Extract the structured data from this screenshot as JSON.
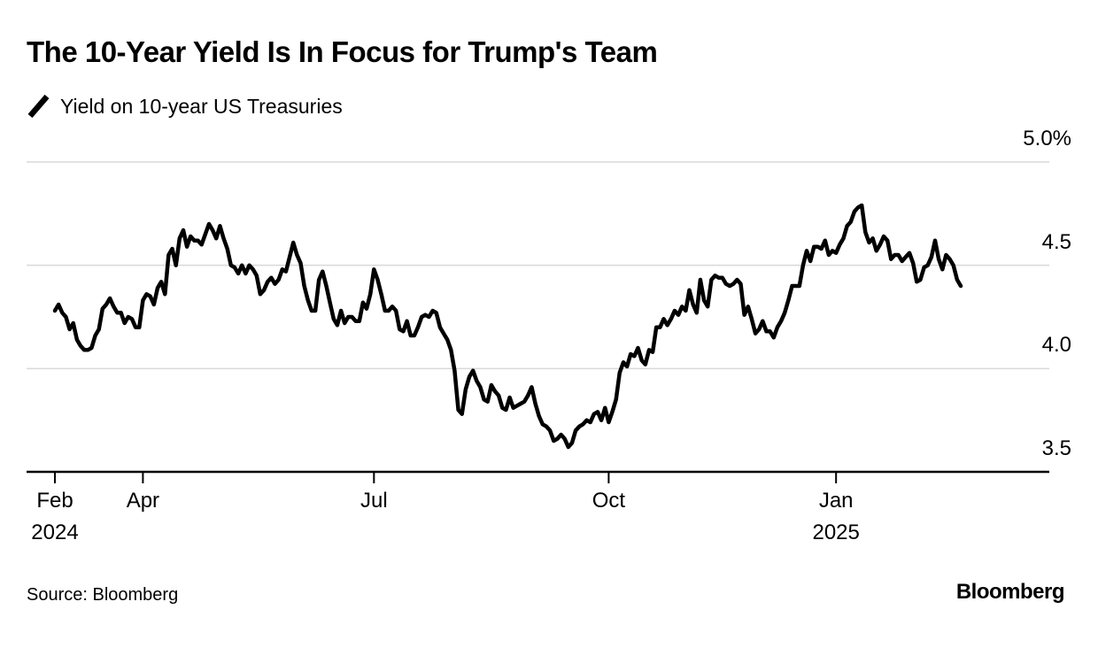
{
  "title": "The 10-Year Yield Is In Focus for Trump's Team",
  "legend": {
    "label": "Yield on 10-year US Treasuries"
  },
  "footer": {
    "source": "Source: Bloomberg",
    "brand": "Bloomberg"
  },
  "colors": {
    "line": "#000000",
    "grid": "#d9d9d9",
    "axis": "#000000",
    "text": "#000000",
    "background": "#ffffff"
  },
  "chart_data": {
    "type": "line",
    "title": "The 10-Year Yield Is In Focus for Trump's Team",
    "series_name": "Yield on 10-year US Treasuries",
    "unit": "%",
    "xlabel": "",
    "ylabel": "",
    "grid": true,
    "legend_position": "top-left",
    "ylim": [
      3.5,
      5.0
    ],
    "line_width": 4.5,
    "yticks": [
      {
        "value": 5.0,
        "label": "5.0%"
      },
      {
        "value": 4.5,
        "label": "4.5"
      },
      {
        "value": 4.0,
        "label": "4.0"
      },
      {
        "value": 3.5,
        "label": "3.5"
      }
    ],
    "xticks": [
      {
        "index": 0,
        "label": "Feb",
        "sublabel": "2024"
      },
      {
        "index": 24,
        "label": "Apr",
        "sublabel": ""
      },
      {
        "index": 87,
        "label": "Jul",
        "sublabel": ""
      },
      {
        "index": 151,
        "label": "Oct",
        "sublabel": ""
      },
      {
        "index": 213,
        "label": "Jan",
        "sublabel": "2025"
      }
    ],
    "points": [
      [
        "2024-02-26",
        4.28
      ],
      [
        "2024-02-27",
        4.31
      ],
      [
        "2024-02-28",
        4.27
      ],
      [
        "2024-02-29",
        4.25
      ],
      [
        "2024-03-01",
        4.19
      ],
      [
        "2024-03-04",
        4.22
      ],
      [
        "2024-03-05",
        4.14
      ],
      [
        "2024-03-06",
        4.11
      ],
      [
        "2024-03-07",
        4.09
      ],
      [
        "2024-03-08",
        4.09
      ],
      [
        "2024-03-11",
        4.1
      ],
      [
        "2024-03-12",
        4.16
      ],
      [
        "2024-03-13",
        4.19
      ],
      [
        "2024-03-14",
        4.29
      ],
      [
        "2024-03-15",
        4.31
      ],
      [
        "2024-03-18",
        4.34
      ],
      [
        "2024-03-19",
        4.3
      ],
      [
        "2024-03-20",
        4.27
      ],
      [
        "2024-03-21",
        4.27
      ],
      [
        "2024-03-22",
        4.22
      ],
      [
        "2024-03-25",
        4.25
      ],
      [
        "2024-03-26",
        4.24
      ],
      [
        "2024-03-27",
        4.2
      ],
      [
        "2024-03-28",
        4.2
      ],
      [
        "2024-04-01",
        4.33
      ],
      [
        "2024-04-02",
        4.36
      ],
      [
        "2024-04-03",
        4.35
      ],
      [
        "2024-04-04",
        4.31
      ],
      [
        "2024-04-05",
        4.39
      ],
      [
        "2024-04-08",
        4.42
      ],
      [
        "2024-04-09",
        4.36
      ],
      [
        "2024-04-10",
        4.55
      ],
      [
        "2024-04-11",
        4.58
      ],
      [
        "2024-04-12",
        4.5
      ],
      [
        "2024-04-15",
        4.63
      ],
      [
        "2024-04-16",
        4.67
      ],
      [
        "2024-04-17",
        4.59
      ],
      [
        "2024-04-18",
        4.64
      ],
      [
        "2024-04-19",
        4.62
      ],
      [
        "2024-04-22",
        4.62
      ],
      [
        "2024-04-23",
        4.6
      ],
      [
        "2024-04-24",
        4.65
      ],
      [
        "2024-04-25",
        4.7
      ],
      [
        "2024-04-26",
        4.67
      ],
      [
        "2024-04-29",
        4.63
      ],
      [
        "2024-04-30",
        4.69
      ],
      [
        "2024-05-01",
        4.63
      ],
      [
        "2024-05-02",
        4.58
      ],
      [
        "2024-05-03",
        4.5
      ],
      [
        "2024-05-06",
        4.49
      ],
      [
        "2024-05-07",
        4.46
      ],
      [
        "2024-05-08",
        4.5
      ],
      [
        "2024-05-09",
        4.46
      ],
      [
        "2024-05-10",
        4.5
      ],
      [
        "2024-05-13",
        4.48
      ],
      [
        "2024-05-14",
        4.45
      ],
      [
        "2024-05-15",
        4.36
      ],
      [
        "2024-05-16",
        4.38
      ],
      [
        "2024-05-17",
        4.42
      ],
      [
        "2024-05-20",
        4.44
      ],
      [
        "2024-05-21",
        4.41
      ],
      [
        "2024-05-22",
        4.43
      ],
      [
        "2024-05-23",
        4.48
      ],
      [
        "2024-05-24",
        4.47
      ],
      [
        "2024-05-28",
        4.54
      ],
      [
        "2024-05-29",
        4.61
      ],
      [
        "2024-05-30",
        4.55
      ],
      [
        "2024-05-31",
        4.51
      ],
      [
        "2024-06-03",
        4.4
      ],
      [
        "2024-06-04",
        4.33
      ],
      [
        "2024-06-05",
        4.28
      ],
      [
        "2024-06-06",
        4.28
      ],
      [
        "2024-06-07",
        4.43
      ],
      [
        "2024-06-10",
        4.47
      ],
      [
        "2024-06-11",
        4.4
      ],
      [
        "2024-06-12",
        4.32
      ],
      [
        "2024-06-13",
        4.24
      ],
      [
        "2024-06-14",
        4.21
      ],
      [
        "2024-06-17",
        4.28
      ],
      [
        "2024-06-18",
        4.22
      ],
      [
        "2024-06-20",
        4.25
      ],
      [
        "2024-06-21",
        4.25
      ],
      [
        "2024-06-24",
        4.23
      ],
      [
        "2024-06-25",
        4.23
      ],
      [
        "2024-06-26",
        4.32
      ],
      [
        "2024-06-27",
        4.29
      ],
      [
        "2024-06-28",
        4.36
      ],
      [
        "2024-07-01",
        4.48
      ],
      [
        "2024-07-02",
        4.43
      ],
      [
        "2024-07-03",
        4.36
      ],
      [
        "2024-07-05",
        4.28
      ],
      [
        "2024-07-08",
        4.28
      ],
      [
        "2024-07-09",
        4.3
      ],
      [
        "2024-07-10",
        4.28
      ],
      [
        "2024-07-11",
        4.19
      ],
      [
        "2024-07-12",
        4.18
      ],
      [
        "2024-07-15",
        4.23
      ],
      [
        "2024-07-16",
        4.16
      ],
      [
        "2024-07-17",
        4.16
      ],
      [
        "2024-07-18",
        4.2
      ],
      [
        "2024-07-19",
        4.25
      ],
      [
        "2024-07-22",
        4.26
      ],
      [
        "2024-07-23",
        4.25
      ],
      [
        "2024-07-24",
        4.28
      ],
      [
        "2024-07-25",
        4.27
      ],
      [
        "2024-07-26",
        4.2
      ],
      [
        "2024-07-29",
        4.17
      ],
      [
        "2024-07-30",
        4.14
      ],
      [
        "2024-07-31",
        4.09
      ],
      [
        "2024-08-01",
        3.99
      ],
      [
        "2024-08-02",
        3.8
      ],
      [
        "2024-08-05",
        3.78
      ],
      [
        "2024-08-06",
        3.9
      ],
      [
        "2024-08-07",
        3.96
      ],
      [
        "2024-08-08",
        3.99
      ],
      [
        "2024-08-09",
        3.94
      ],
      [
        "2024-08-12",
        3.91
      ],
      [
        "2024-08-13",
        3.85
      ],
      [
        "2024-08-14",
        3.84
      ],
      [
        "2024-08-15",
        3.92
      ],
      [
        "2024-08-16",
        3.89
      ],
      [
        "2024-08-19",
        3.87
      ],
      [
        "2024-08-20",
        3.81
      ],
      [
        "2024-08-21",
        3.8
      ],
      [
        "2024-08-22",
        3.86
      ],
      [
        "2024-08-23",
        3.81
      ],
      [
        "2024-08-26",
        3.82
      ],
      [
        "2024-08-27",
        3.83
      ],
      [
        "2024-08-28",
        3.84
      ],
      [
        "2024-08-29",
        3.87
      ],
      [
        "2024-08-30",
        3.91
      ],
      [
        "2024-09-03",
        3.83
      ],
      [
        "2024-09-04",
        3.77
      ],
      [
        "2024-09-05",
        3.73
      ],
      [
        "2024-09-06",
        3.72
      ],
      [
        "2024-09-09",
        3.7
      ],
      [
        "2024-09-10",
        3.65
      ],
      [
        "2024-09-11",
        3.66
      ],
      [
        "2024-09-12",
        3.68
      ],
      [
        "2024-09-13",
        3.66
      ],
      [
        "2024-09-16",
        3.62
      ],
      [
        "2024-09-17",
        3.64
      ],
      [
        "2024-09-18",
        3.7
      ],
      [
        "2024-09-19",
        3.72
      ],
      [
        "2024-09-20",
        3.73
      ],
      [
        "2024-09-23",
        3.75
      ],
      [
        "2024-09-24",
        3.74
      ],
      [
        "2024-09-25",
        3.78
      ],
      [
        "2024-09-26",
        3.79
      ],
      [
        "2024-09-27",
        3.75
      ],
      [
        "2024-09-30",
        3.81
      ],
      [
        "2024-10-01",
        3.74
      ],
      [
        "2024-10-02",
        3.79
      ],
      [
        "2024-10-03",
        3.85
      ],
      [
        "2024-10-04",
        3.98
      ],
      [
        "2024-10-07",
        4.03
      ],
      [
        "2024-10-08",
        4.01
      ],
      [
        "2024-10-09",
        4.07
      ],
      [
        "2024-10-10",
        4.06
      ],
      [
        "2024-10-11",
        4.1
      ],
      [
        "2024-10-15",
        4.04
      ],
      [
        "2024-10-16",
        4.02
      ],
      [
        "2024-10-17",
        4.09
      ],
      [
        "2024-10-18",
        4.08
      ],
      [
        "2024-10-21",
        4.2
      ],
      [
        "2024-10-22",
        4.2
      ],
      [
        "2024-10-23",
        4.24
      ],
      [
        "2024-10-24",
        4.21
      ],
      [
        "2024-10-25",
        4.24
      ],
      [
        "2024-10-28",
        4.28
      ],
      [
        "2024-10-29",
        4.26
      ],
      [
        "2024-10-30",
        4.3
      ],
      [
        "2024-10-31",
        4.28
      ],
      [
        "2024-11-01",
        4.38
      ],
      [
        "2024-11-04",
        4.31
      ],
      [
        "2024-11-05",
        4.27
      ],
      [
        "2024-11-06",
        4.43
      ],
      [
        "2024-11-07",
        4.33
      ],
      [
        "2024-11-08",
        4.3
      ],
      [
        "2024-11-12",
        4.43
      ],
      [
        "2024-11-13",
        4.45
      ],
      [
        "2024-11-14",
        4.44
      ],
      [
        "2024-11-15",
        4.44
      ],
      [
        "2024-11-18",
        4.41
      ],
      [
        "2024-11-19",
        4.4
      ],
      [
        "2024-11-20",
        4.41
      ],
      [
        "2024-11-21",
        4.43
      ],
      [
        "2024-11-22",
        4.41
      ],
      [
        "2024-11-25",
        4.26
      ],
      [
        "2024-11-26",
        4.3
      ],
      [
        "2024-11-27",
        4.24
      ],
      [
        "2024-11-29",
        4.17
      ],
      [
        "2024-12-02",
        4.19
      ],
      [
        "2024-12-03",
        4.23
      ],
      [
        "2024-12-04",
        4.18
      ],
      [
        "2024-12-05",
        4.18
      ],
      [
        "2024-12-06",
        4.15
      ],
      [
        "2024-12-09",
        4.2
      ],
      [
        "2024-12-10",
        4.23
      ],
      [
        "2024-12-11",
        4.27
      ],
      [
        "2024-12-12",
        4.33
      ],
      [
        "2024-12-13",
        4.4
      ],
      [
        "2024-12-16",
        4.4
      ],
      [
        "2024-12-17",
        4.4
      ],
      [
        "2024-12-18",
        4.5
      ],
      [
        "2024-12-19",
        4.57
      ],
      [
        "2024-12-20",
        4.52
      ],
      [
        "2024-12-23",
        4.59
      ],
      [
        "2024-12-24",
        4.59
      ],
      [
        "2024-12-26",
        4.58
      ],
      [
        "2024-12-27",
        4.62
      ],
      [
        "2024-12-30",
        4.55
      ],
      [
        "2024-12-31",
        4.57
      ],
      [
        "2025-01-02",
        4.56
      ],
      [
        "2025-01-03",
        4.6
      ],
      [
        "2025-01-06",
        4.63
      ],
      [
        "2025-01-07",
        4.69
      ],
      [
        "2025-01-08",
        4.71
      ],
      [
        "2025-01-10",
        4.76
      ],
      [
        "2025-01-13",
        4.78
      ],
      [
        "2025-01-14",
        4.79
      ],
      [
        "2025-01-15",
        4.66
      ],
      [
        "2025-01-16",
        4.61
      ],
      [
        "2025-01-17",
        4.63
      ],
      [
        "2025-01-21",
        4.57
      ],
      [
        "2025-01-22",
        4.6
      ],
      [
        "2025-01-23",
        4.64
      ],
      [
        "2025-01-24",
        4.62
      ],
      [
        "2025-01-27",
        4.53
      ],
      [
        "2025-01-28",
        4.55
      ],
      [
        "2025-01-29",
        4.55
      ],
      [
        "2025-01-30",
        4.52
      ],
      [
        "2025-01-31",
        4.54
      ],
      [
        "2025-02-03",
        4.56
      ],
      [
        "2025-02-04",
        4.51
      ],
      [
        "2025-02-05",
        4.42
      ],
      [
        "2025-02-06",
        4.43
      ],
      [
        "2025-02-07",
        4.49
      ],
      [
        "2025-02-10",
        4.5
      ],
      [
        "2025-02-11",
        4.54
      ],
      [
        "2025-02-12",
        4.62
      ],
      [
        "2025-02-13",
        4.53
      ],
      [
        "2025-02-14",
        4.48
      ],
      [
        "2025-02-18",
        4.55
      ],
      [
        "2025-02-19",
        4.53
      ],
      [
        "2025-02-20",
        4.5
      ],
      [
        "2025-02-21",
        4.43
      ],
      [
        "2025-02-24",
        4.4
      ]
    ]
  }
}
